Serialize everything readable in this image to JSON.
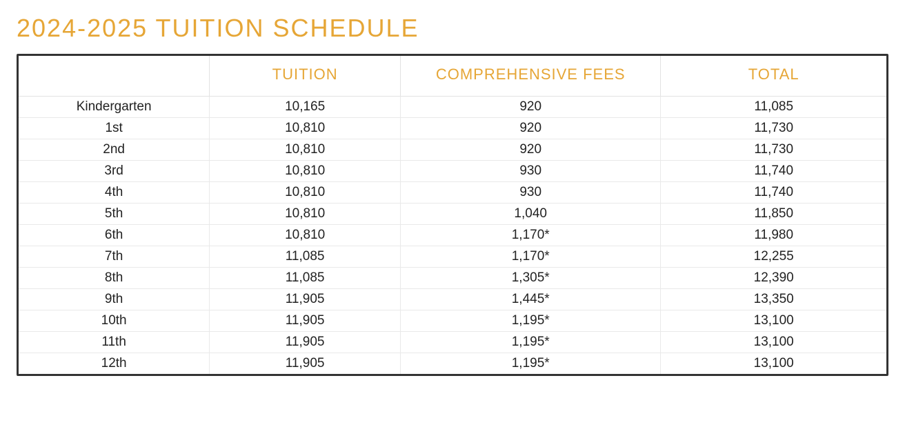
{
  "title": "2024-2025 TUITION SCHEDULE",
  "colors": {
    "accent": "#e6a636",
    "text": "#222222",
    "border_outer": "#333333",
    "border_inner": "#e5e5e5",
    "background": "#ffffff"
  },
  "typography": {
    "title_fontsize": 36,
    "header_fontsize": 22,
    "cell_fontsize": 19,
    "font_family": "Century Gothic / Avenir / Futura"
  },
  "table": {
    "columns": [
      "",
      "TUITION",
      "COMPREHENSIVE FEES",
      "TOTAL"
    ],
    "column_widths_pct": [
      22,
      22,
      30,
      26
    ],
    "rows": [
      [
        "Kindergarten",
        "10,165",
        "920",
        "11,085"
      ],
      [
        "1st",
        "10,810",
        "920",
        "11,730"
      ],
      [
        "2nd",
        "10,810",
        "920",
        "11,730"
      ],
      [
        "3rd",
        "10,810",
        "930",
        "11,740"
      ],
      [
        "4th",
        "10,810",
        "930",
        "11,740"
      ],
      [
        "5th",
        "10,810",
        "1,040",
        "11,850"
      ],
      [
        "6th",
        "10,810",
        "1,170*",
        "11,980"
      ],
      [
        "7th",
        "11,085",
        "1,170*",
        "12,255"
      ],
      [
        "8th",
        "11,085",
        "1,305*",
        "12,390"
      ],
      [
        "9th",
        "11,905",
        "1,445*",
        "13,350"
      ],
      [
        "10th",
        "11,905",
        "1,195*",
        "13,100"
      ],
      [
        "11th",
        "11,905",
        "1,195*",
        "13,100"
      ],
      [
        "12th",
        "11,905",
        "1,195*",
        "13,100"
      ]
    ]
  }
}
